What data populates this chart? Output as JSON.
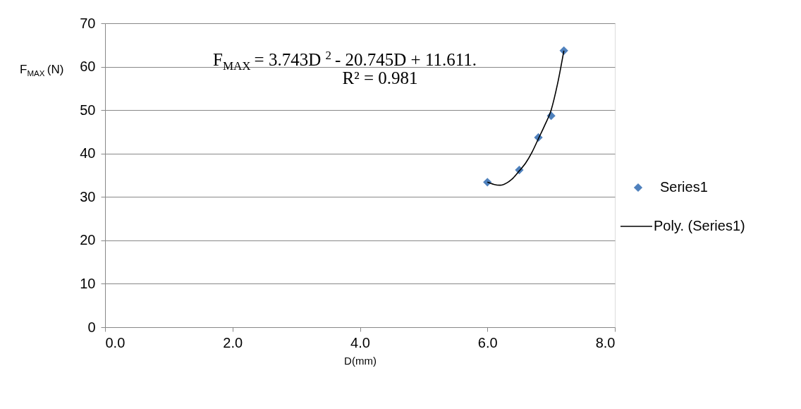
{
  "chart_data": {
    "type": "scatter",
    "xlabel": "D(mm)",
    "ylabel": "F$_{MAX}$(N)",
    "xlim": [
      0,
      8
    ],
    "xticks": [
      {
        "value": 0,
        "label": "0.0"
      },
      {
        "value": 2,
        "label": "2.0"
      },
      {
        "value": 4,
        "label": "4.0"
      },
      {
        "value": 6,
        "label": "6.0"
      },
      {
        "value": 8,
        "label": "8.0"
      }
    ],
    "ylim": [
      0,
      70
    ],
    "yticks": [
      0,
      10,
      20,
      30,
      40,
      50,
      60,
      70
    ],
    "grid": "y",
    "legend": "right",
    "annotations": [
      "F$_{MAX}$ = 3.743D$^{2}$ - 20.745D + 11.611.",
      "R² = 0.981"
    ],
    "series": [
      {
        "name": "Series1",
        "marker": "diamond",
        "color": "#4f81bd",
        "x": [
          6.0,
          6.5,
          6.8,
          7.0,
          7.2
        ],
        "values": [
          33.4,
          36.2,
          43.7,
          48.7,
          63.7
        ]
      },
      {
        "name": "Poly. (Series1)",
        "type": "line",
        "marker": "none",
        "color": "#000000",
        "x": [
          6.0,
          6.1,
          6.2,
          6.3,
          6.4,
          6.5,
          6.6,
          6.7,
          6.8,
          6.9,
          7.0,
          7.1,
          7.2
        ],
        "values": [
          33.4,
          32.9,
          32.7,
          33.2,
          34.3,
          36.0,
          37.8,
          40.3,
          43.4,
          46.5,
          50.0,
          56.0,
          63.7
        ]
      }
    ]
  }
}
